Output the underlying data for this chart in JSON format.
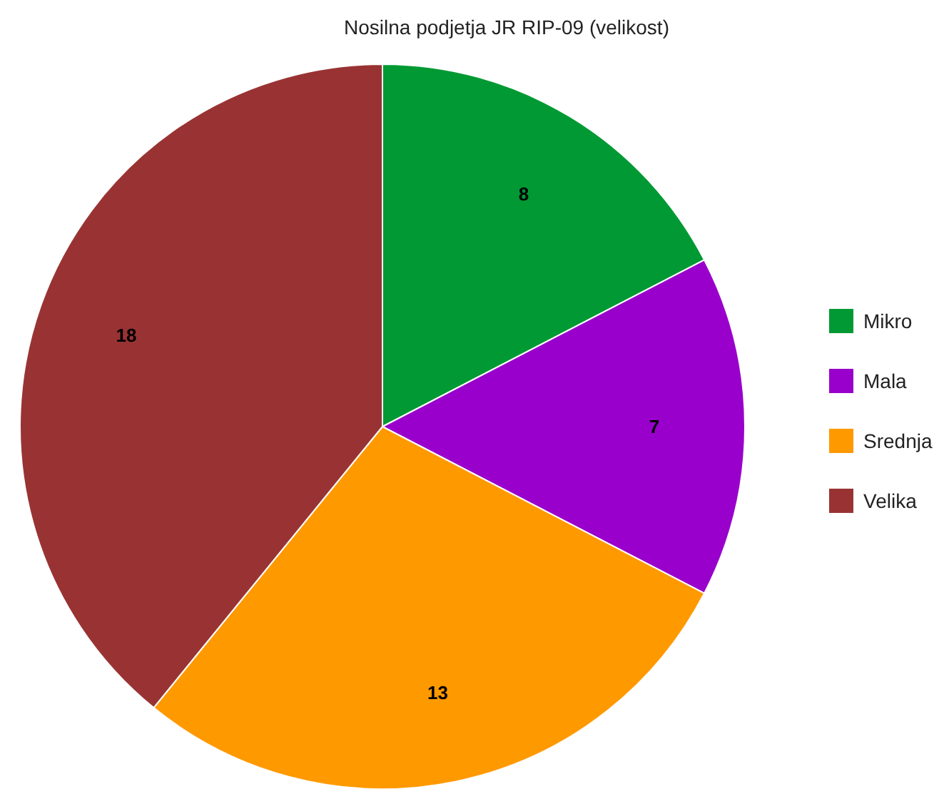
{
  "chart_data": {
    "type": "pie",
    "title": "Nosilna podjetja JR RIP-09 (velikost)",
    "categories": [
      "Mikro",
      "Mala",
      "Srednja",
      "Velika"
    ],
    "values": [
      8,
      7,
      13,
      18
    ],
    "colors": [
      "#009933",
      "#9900cc",
      "#ff9900",
      "#993333"
    ],
    "data_labels": true,
    "legend": "right"
  }
}
